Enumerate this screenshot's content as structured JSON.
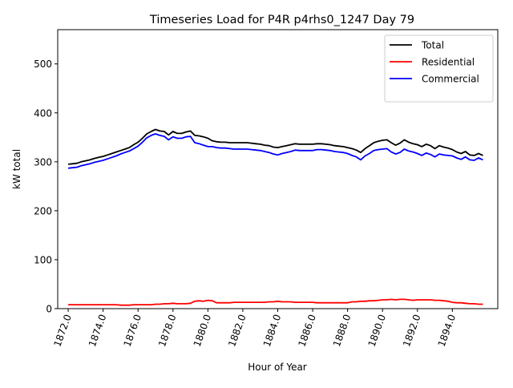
{
  "chart_data": {
    "type": "line",
    "title": "Timeseries Load for P4R p4rhs0_1247  Day 79",
    "xlabel": "Hour of Year",
    "ylabel": "kW total",
    "xlim": [
      1871.4,
      1896.6
    ],
    "ylim": [
      0,
      570
    ],
    "x_ticks": [
      1872,
      1874,
      1876,
      1878,
      1880,
      1882,
      1884,
      1886,
      1888,
      1890,
      1892,
      1894
    ],
    "x_tick_labels": [
      "1872.0",
      "1874.0",
      "1876.0",
      "1878.0",
      "1880.0",
      "1882.0",
      "1884.0",
      "1886.0",
      "1888.0",
      "1890.0",
      "1892.0",
      "1894.0"
    ],
    "y_ticks": [
      0,
      100,
      200,
      300,
      400,
      500
    ],
    "y_tick_labels": [
      "0",
      "100",
      "200",
      "300",
      "400",
      "500"
    ],
    "legend_position": "top-right",
    "series": [
      {
        "name": "Total",
        "color": "#000000",
        "x": [
          1872,
          1872.25,
          1872.5,
          1872.75,
          1873,
          1873.25,
          1873.5,
          1873.75,
          1874,
          1874.25,
          1874.5,
          1874.75,
          1875,
          1875.25,
          1875.5,
          1875.75,
          1876,
          1876.25,
          1876.5,
          1876.75,
          1877,
          1877.25,
          1877.5,
          1877.75,
          1878,
          1878.25,
          1878.5,
          1878.75,
          1879,
          1879.25,
          1879.5,
          1879.75,
          1880,
          1880.25,
          1880.5,
          1880.75,
          1881,
          1881.25,
          1881.5,
          1881.75,
          1882,
          1882.25,
          1882.5,
          1882.75,
          1883,
          1883.25,
          1883.5,
          1883.75,
          1884,
          1884.25,
          1884.5,
          1884.75,
          1885,
          1885.25,
          1885.5,
          1885.75,
          1886,
          1886.25,
          1886.5,
          1886.75,
          1887,
          1887.25,
          1887.5,
          1887.75,
          1888,
          1888.25,
          1888.5,
          1888.75,
          1889,
          1889.25,
          1889.5,
          1889.75,
          1890,
          1890.25,
          1890.5,
          1890.75,
          1891,
          1891.25,
          1891.5,
          1891.75,
          1892,
          1892.25,
          1892.5,
          1892.75,
          1893,
          1893.25,
          1893.5,
          1893.75,
          1894,
          1894.25,
          1894.5,
          1894.75,
          1895,
          1895.25,
          1895.5,
          1895.75
        ],
        "values": [
          295,
          296,
          297,
          300,
          302,
          304,
          307,
          309,
          311,
          314,
          317,
          320,
          323,
          326,
          329,
          335,
          340,
          348,
          357,
          362,
          366,
          363,
          362,
          355,
          362,
          358,
          358,
          361,
          363,
          354,
          353,
          351,
          348,
          343,
          341,
          340,
          340,
          339,
          339,
          339,
          339,
          339,
          338,
          337,
          336,
          334,
          333,
          330,
          329,
          331,
          333,
          335,
          337,
          336,
          336,
          336,
          336,
          337,
          337,
          336,
          335,
          333,
          332,
          331,
          329,
          327,
          324,
          319,
          327,
          333,
          339,
          342,
          344,
          345,
          339,
          334,
          338,
          345,
          340,
          337,
          335,
          331,
          336,
          333,
          327,
          333,
          330,
          328,
          325,
          320,
          317,
          321,
          314,
          313,
          317,
          313
        ]
      },
      {
        "name": "Residential",
        "color": "#ff0000",
        "x": [
          1872,
          1872.25,
          1872.5,
          1872.75,
          1873,
          1873.25,
          1873.5,
          1873.75,
          1874,
          1874.25,
          1874.5,
          1874.75,
          1875,
          1875.25,
          1875.5,
          1875.75,
          1876,
          1876.25,
          1876.5,
          1876.75,
          1877,
          1877.25,
          1877.5,
          1877.75,
          1878,
          1878.25,
          1878.5,
          1878.75,
          1879,
          1879.25,
          1879.5,
          1879.75,
          1880,
          1880.25,
          1880.5,
          1880.75,
          1881,
          1881.25,
          1881.5,
          1881.75,
          1882,
          1882.25,
          1882.5,
          1882.75,
          1883,
          1883.25,
          1883.5,
          1883.75,
          1884,
          1884.25,
          1884.5,
          1884.75,
          1885,
          1885.25,
          1885.5,
          1885.75,
          1886,
          1886.25,
          1886.5,
          1886.75,
          1887,
          1887.25,
          1887.5,
          1887.75,
          1888,
          1888.25,
          1888.5,
          1888.75,
          1889,
          1889.25,
          1889.5,
          1889.75,
          1890,
          1890.25,
          1890.5,
          1890.75,
          1891,
          1891.25,
          1891.5,
          1891.75,
          1892,
          1892.25,
          1892.5,
          1892.75,
          1893,
          1893.25,
          1893.5,
          1893.75,
          1894,
          1894.25,
          1894.5,
          1894.75,
          1895,
          1895.25,
          1895.5,
          1895.75
        ],
        "values": [
          8,
          8,
          8,
          8,
          8,
          8,
          8,
          8,
          8,
          8,
          8,
          8,
          7,
          7,
          7,
          8,
          8,
          8,
          8,
          8,
          9,
          9,
          10,
          10,
          11,
          10,
          10,
          10,
          11,
          15,
          16,
          15,
          17,
          16,
          12,
          12,
          12,
          12,
          13,
          13,
          13,
          13,
          13,
          13,
          13,
          13,
          14,
          14,
          15,
          14,
          14,
          14,
          13,
          13,
          13,
          13,
          13,
          12,
          12,
          12,
          12,
          12,
          12,
          12,
          12,
          14,
          14,
          15,
          15,
          16,
          16,
          17,
          18,
          18,
          19,
          18,
          19,
          19,
          18,
          17,
          18,
          18,
          18,
          18,
          17,
          17,
          16,
          15,
          13,
          12,
          12,
          11,
          10,
          10,
          9,
          9
        ]
      },
      {
        "name": "Commercial",
        "color": "#0000ff",
        "x": [
          1872,
          1872.25,
          1872.5,
          1872.75,
          1873,
          1873.25,
          1873.5,
          1873.75,
          1874,
          1874.25,
          1874.5,
          1874.75,
          1875,
          1875.25,
          1875.5,
          1875.75,
          1876,
          1876.25,
          1876.5,
          1876.75,
          1877,
          1877.25,
          1877.5,
          1877.75,
          1878,
          1878.25,
          1878.5,
          1878.75,
          1879,
          1879.25,
          1879.5,
          1879.75,
          1880,
          1880.25,
          1880.5,
          1880.75,
          1881,
          1881.25,
          1881.5,
          1881.75,
          1882,
          1882.25,
          1882.5,
          1882.75,
          1883,
          1883.25,
          1883.5,
          1883.75,
          1884,
          1884.25,
          1884.5,
          1884.75,
          1885,
          1885.25,
          1885.5,
          1885.75,
          1886,
          1886.25,
          1886.5,
          1886.75,
          1887,
          1887.25,
          1887.5,
          1887.75,
          1888,
          1888.25,
          1888.5,
          1888.75,
          1889,
          1889.25,
          1889.5,
          1889.75,
          1890,
          1890.25,
          1890.5,
          1890.75,
          1891,
          1891.25,
          1891.5,
          1891.75,
          1892,
          1892.25,
          1892.5,
          1892.75,
          1893,
          1893.25,
          1893.5,
          1893.75,
          1894,
          1894.25,
          1894.5,
          1894.75,
          1895,
          1895.25,
          1895.5,
          1895.75
        ],
        "values": [
          287,
          288,
          289,
          292,
          294,
          296,
          299,
          301,
          303,
          306,
          309,
          312,
          316,
          319,
          322,
          327,
          332,
          340,
          349,
          354,
          357,
          354,
          352,
          345,
          351,
          348,
          348,
          351,
          352,
          339,
          337,
          334,
          331,
          331,
          329,
          328,
          328,
          327,
          326,
          326,
          326,
          326,
          325,
          324,
          323,
          321,
          319,
          316,
          314,
          317,
          319,
          321,
          324,
          323,
          323,
          323,
          323,
          325,
          325,
          324,
          323,
          321,
          320,
          319,
          317,
          313,
          310,
          304,
          312,
          317,
          323,
          325,
          326,
          327,
          320,
          316,
          319,
          326,
          322,
          320,
          317,
          313,
          318,
          315,
          310,
          316,
          314,
          313,
          312,
          308,
          305,
          310,
          304,
          303,
          308,
          304
        ]
      }
    ]
  }
}
